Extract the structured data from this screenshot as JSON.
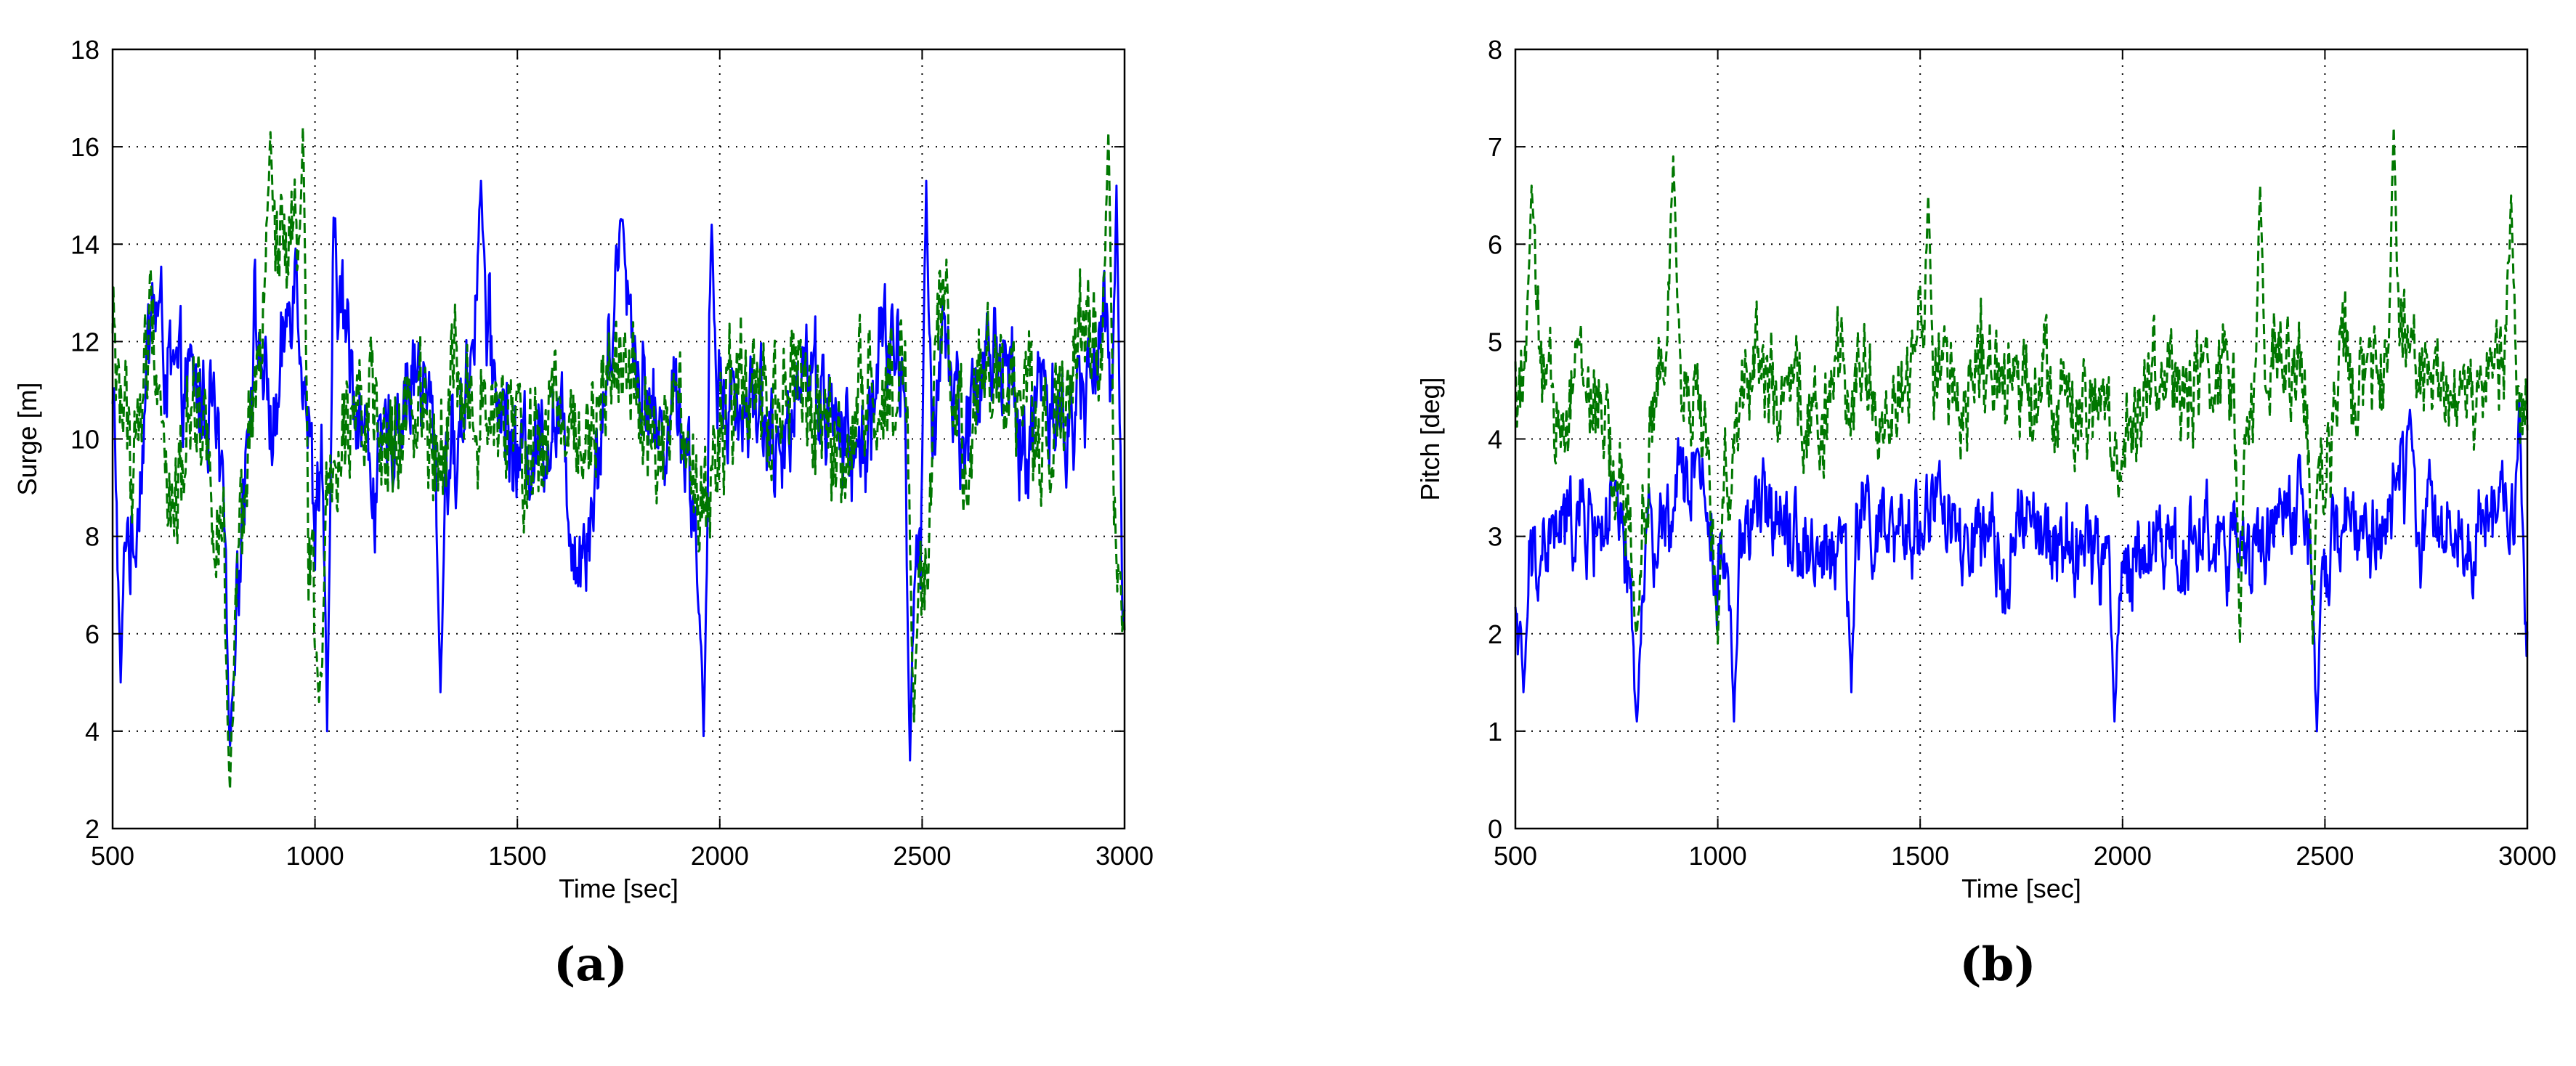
{
  "figure": {
    "panels": [
      {
        "caption": "(a)"
      },
      {
        "caption": "(b)"
      }
    ]
  },
  "chart_data": [
    {
      "type": "line",
      "xlabel": "Time [sec]",
      "ylabel": "Surge [m]",
      "xlim": [
        500,
        3000
      ],
      "ylim": [
        2,
        18
      ],
      "xticks": [
        500,
        1000,
        1500,
        2000,
        2500,
        3000
      ],
      "yticks": [
        2,
        4,
        6,
        8,
        10,
        12,
        14,
        16,
        18
      ],
      "grid": true,
      "legend": "none",
      "series": [
        {
          "color": "#0000ff",
          "style": "solid",
          "x": [
            500,
            550,
            600,
            650,
            700,
            750,
            800,
            850,
            900,
            950,
            1000,
            1050,
            1100,
            1150,
            1200,
            1250,
            1300,
            1350,
            1400,
            1450,
            1500,
            1550,
            1600,
            1650,
            1700,
            1750,
            1800,
            1850,
            1900,
            1950,
            2000,
            2050,
            2100,
            2150,
            2200,
            2250,
            2300,
            2350,
            2400,
            2450,
            2500,
            2550,
            2600,
            2650,
            2700,
            2750,
            2800,
            2850,
            2900,
            2950,
            3000
          ],
          "y": [
            10.5,
            7.5,
            13.0,
            11.0,
            11.0,
            10.5,
            6.0,
            12.5,
            10.0,
            14.0,
            8.5,
            13.5,
            11.0,
            9.0,
            10.5,
            11.5,
            10.0,
            9.5,
            13.0,
            11.0,
            9.5,
            10.0,
            10.5,
            7.5,
            9.5,
            14.0,
            11.5,
            10.0,
            11.0,
            7.5,
            11.5,
            10.5,
            11.0,
            9.0,
            12.0,
            11.0,
            10.0,
            9.5,
            12.0,
            11.5,
            7.0,
            12.5,
            10.0,
            11.5,
            12.0,
            9.5,
            11.5,
            10.0,
            11.0,
            12.5,
            6.5
          ],
          "peaks": [
            {
              "x": 1410,
              "y": 15.3
            },
            {
              "x": 1760,
              "y": 14.5
            },
            {
              "x": 1980,
              "y": 14.4
            },
            {
              "x": 2510,
              "y": 15.3
            },
            {
              "x": 2980,
              "y": 15.2
            }
          ],
          "troughs": [
            {
              "x": 520,
              "y": 5.0
            },
            {
              "x": 790,
              "y": 3.7
            },
            {
              "x": 1030,
              "y": 4.0
            },
            {
              "x": 1310,
              "y": 4.8
            },
            {
              "x": 1960,
              "y": 3.9
            },
            {
              "x": 2470,
              "y": 3.4
            }
          ]
        },
        {
          "color": "#007700",
          "style": "dashed",
          "x": [
            500,
            550,
            600,
            650,
            700,
            750,
            800,
            850,
            900,
            950,
            1000,
            1050,
            1100,
            1150,
            1200,
            1250,
            1300,
            1350,
            1400,
            1450,
            1500,
            1550,
            1600,
            1650,
            1700,
            1750,
            1800,
            1850,
            1900,
            1950,
            2000,
            2050,
            2100,
            2150,
            2200,
            2250,
            2300,
            2350,
            2400,
            2450,
            2500,
            2550,
            2600,
            2650,
            2700,
            2750,
            2800,
            2850,
            2900,
            2950,
            3000
          ],
          "y": [
            12.0,
            9.5,
            12.5,
            8.0,
            11.5,
            9.0,
            5.5,
            11.0,
            13.5,
            14.0,
            6.0,
            10.0,
            11.5,
            10.0,
            9.5,
            11.0,
            10.0,
            11.5,
            10.0,
            10.5,
            10.0,
            9.5,
            11.0,
            10.0,
            11.0,
            12.0,
            10.5,
            9.5,
            10.5,
            8.0,
            10.0,
            11.0,
            10.5,
            10.5,
            11.5,
            10.0,
            9.0,
            11.0,
            10.5,
            12.0,
            6.5,
            13.0,
            9.5,
            12.0,
            10.5,
            11.0,
            10.0,
            11.0,
            12.5,
            11.5,
            6.0
          ],
          "peaks": [
            {
              "x": 890,
              "y": 16.3
            },
            {
              "x": 970,
              "y": 16.4
            },
            {
              "x": 2960,
              "y": 16.3
            }
          ],
          "troughs": [
            {
              "x": 790,
              "y": 2.8
            },
            {
              "x": 1010,
              "y": 4.6
            },
            {
              "x": 2480,
              "y": 4.2
            }
          ]
        }
      ]
    },
    {
      "type": "line",
      "xlabel": "Time [sec]",
      "ylabel": "Pitch [deg]",
      "xlim": [
        500,
        3000
      ],
      "ylim": [
        0,
        8
      ],
      "xticks": [
        500,
        1000,
        1500,
        2000,
        2500,
        3000
      ],
      "yticks": [
        0,
        1,
        2,
        3,
        4,
        5,
        6,
        7,
        8
      ],
      "grid": true,
      "legend": "none",
      "series": [
        {
          "color": "#0000ff",
          "style": "solid",
          "x": [
            500,
            550,
            600,
            650,
            700,
            750,
            800,
            850,
            900,
            950,
            1000,
            1050,
            1100,
            1150,
            1200,
            1250,
            1300,
            1350,
            1400,
            1450,
            1500,
            1550,
            1600,
            1650,
            1700,
            1750,
            1800,
            1850,
            1900,
            1950,
            2000,
            2050,
            2100,
            2150,
            2200,
            2250,
            2300,
            2350,
            2400,
            2450,
            2500,
            2550,
            2600,
            2650,
            2700,
            2750,
            2800,
            2850,
            2900,
            2950,
            3000
          ],
          "y": [
            2.2,
            2.8,
            3.0,
            3.2,
            3.1,
            3.2,
            2.0,
            2.8,
            3.4,
            3.8,
            2.6,
            3.0,
            3.2,
            3.4,
            3.0,
            2.8,
            2.9,
            3.3,
            3.0,
            2.9,
            3.2,
            3.4,
            2.8,
            2.9,
            2.7,
            3.1,
            3.0,
            2.8,
            2.9,
            2.8,
            2.6,
            2.9,
            3.0,
            2.8,
            3.1,
            2.9,
            2.7,
            3.0,
            3.3,
            3.1,
            2.5,
            3.3,
            2.9,
            3.2,
            3.6,
            3.0,
            3.2,
            3.0,
            3.1,
            3.4,
            2.0
          ],
          "peaks": [
            {
              "x": 830,
              "y": 3.5
            },
            {
              "x": 950,
              "y": 3.9
            },
            {
              "x": 2710,
              "y": 4.3
            },
            {
              "x": 2980,
              "y": 4.4
            }
          ],
          "troughs": [
            {
              "x": 520,
              "y": 1.4
            },
            {
              "x": 800,
              "y": 1.1
            },
            {
              "x": 1040,
              "y": 1.1
            },
            {
              "x": 1330,
              "y": 1.4
            },
            {
              "x": 1980,
              "y": 1.1
            },
            {
              "x": 2480,
              "y": 1.0
            }
          ]
        },
        {
          "color": "#007700",
          "style": "dashed",
          "x": [
            500,
            550,
            600,
            650,
            700,
            750,
            800,
            850,
            900,
            950,
            1000,
            1050,
            1100,
            1150,
            1200,
            1250,
            1300,
            1350,
            1400,
            1450,
            1500,
            1550,
            1600,
            1650,
            1700,
            1750,
            1800,
            1850,
            1900,
            1950,
            2000,
            2050,
            2100,
            2150,
            2200,
            2250,
            2300,
            2350,
            2400,
            2450,
            2500,
            2550,
            2600,
            2650,
            2700,
            2750,
            2800,
            2850,
            2900,
            2950,
            3000
          ],
          "y": [
            4.5,
            5.2,
            4.0,
            4.8,
            4.3,
            3.6,
            2.6,
            4.6,
            5.0,
            4.4,
            3.0,
            4.4,
            5.0,
            4.2,
            4.4,
            4.1,
            4.6,
            4.8,
            4.2,
            4.4,
            5.0,
            4.6,
            4.4,
            4.8,
            4.4,
            4.6,
            4.8,
            4.3,
            4.1,
            4.4,
            3.6,
            4.6,
            4.7,
            4.4,
            4.5,
            4.8,
            4.1,
            4.6,
            5.0,
            4.6,
            3.6,
            4.9,
            4.4,
            4.6,
            5.0,
            4.6,
            4.5,
            4.4,
            4.7,
            4.8,
            4.3
          ],
          "peaks": [
            {
              "x": 540,
              "y": 6.6
            },
            {
              "x": 890,
              "y": 6.9
            },
            {
              "x": 1520,
              "y": 6.5
            },
            {
              "x": 2340,
              "y": 6.6
            },
            {
              "x": 2670,
              "y": 7.2
            },
            {
              "x": 2960,
              "y": 6.5
            }
          ],
          "troughs": [
            {
              "x": 800,
              "y": 2.0
            },
            {
              "x": 1000,
              "y": 1.9
            },
            {
              "x": 2290,
              "y": 1.9
            },
            {
              "x": 2470,
              "y": 1.9
            }
          ]
        }
      ]
    }
  ]
}
